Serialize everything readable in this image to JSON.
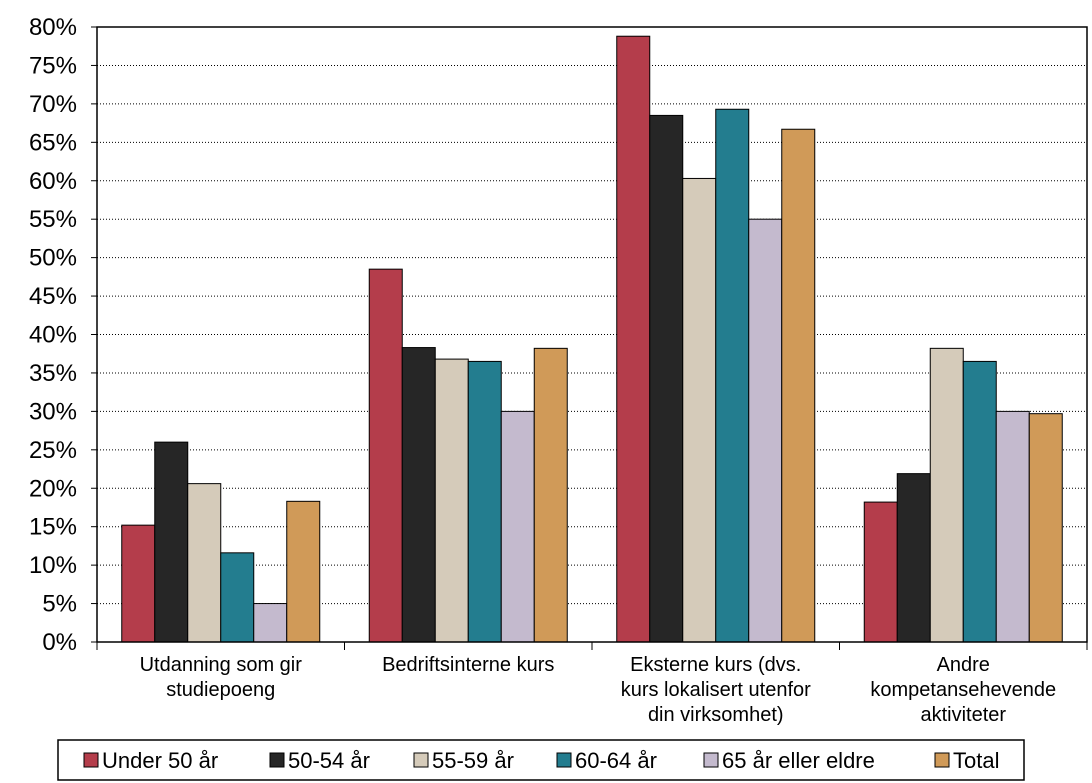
{
  "chart_data": {
    "type": "bar",
    "title": "",
    "xlabel": "",
    "ylabel": "",
    "ylim": [
      0,
      80
    ],
    "y_tick_step": 5,
    "y_tick_suffix": "%",
    "grid": "horizontal, dotted",
    "legend_position": "bottom",
    "categories": [
      [
        "Utdanning som gir",
        "studiepoeng"
      ],
      [
        "Bedriftsinterne kurs"
      ],
      [
        "Eksterne kurs (dvs.",
        "kurs lokalisert utenfor",
        "din virksomhet)"
      ],
      [
        "Andre",
        "kompetansehevende",
        "aktiviteter"
      ]
    ],
    "series": [
      {
        "name": "Under 50 år",
        "color": "#B43D4B",
        "values": [
          15.2,
          48.5,
          78.8,
          18.2
        ]
      },
      {
        "name": "50-54 år",
        "color": "#262626",
        "values": [
          26.0,
          38.3,
          68.5,
          21.9
        ]
      },
      {
        "name": "55-59 år",
        "color": "#D5CBBA",
        "values": [
          20.6,
          36.8,
          60.3,
          38.2
        ]
      },
      {
        "name": "60-64 år",
        "color": "#237D8F",
        "values": [
          11.6,
          36.5,
          69.3,
          36.5
        ]
      },
      {
        "name": "65 år eller eldre",
        "color": "#C4BACE",
        "values": [
          5.0,
          30.0,
          55.0,
          30.0
        ]
      },
      {
        "name": "Total",
        "color": "#D09A58",
        "values": [
          18.3,
          38.2,
          66.7,
          29.7
        ]
      }
    ]
  }
}
